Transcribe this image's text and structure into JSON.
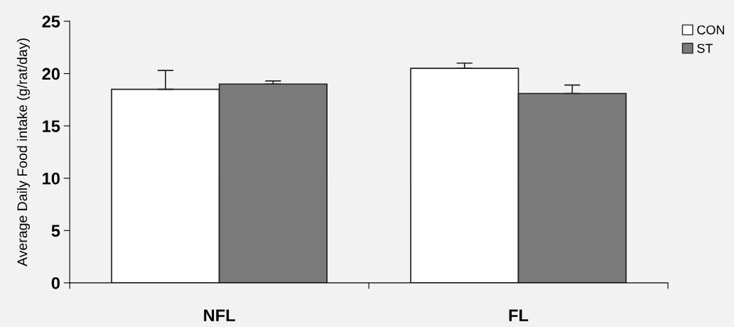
{
  "chart_data": {
    "type": "bar",
    "ylabel": "Average Daily Food intake (g/rat/day)",
    "categories": [
      "NFL",
      "FL"
    ],
    "series": [
      {
        "name": "CON",
        "color": "#ffffff",
        "values": [
          18.5,
          20.5
        ],
        "errors": [
          [
            18.5,
            20.3
          ],
          [
            20.5,
            21.0
          ]
        ]
      },
      {
        "name": "ST",
        "color": "#7a7a7a",
        "values": [
          19.0,
          18.1
        ],
        "errors": [
          [
            19.0,
            19.3
          ],
          [
            18.1,
            18.9
          ]
        ]
      }
    ],
    "ylim": [
      0,
      25
    ],
    "yticks": [
      0,
      5,
      10,
      15,
      20,
      25
    ],
    "grid": false,
    "legend": "top right"
  }
}
